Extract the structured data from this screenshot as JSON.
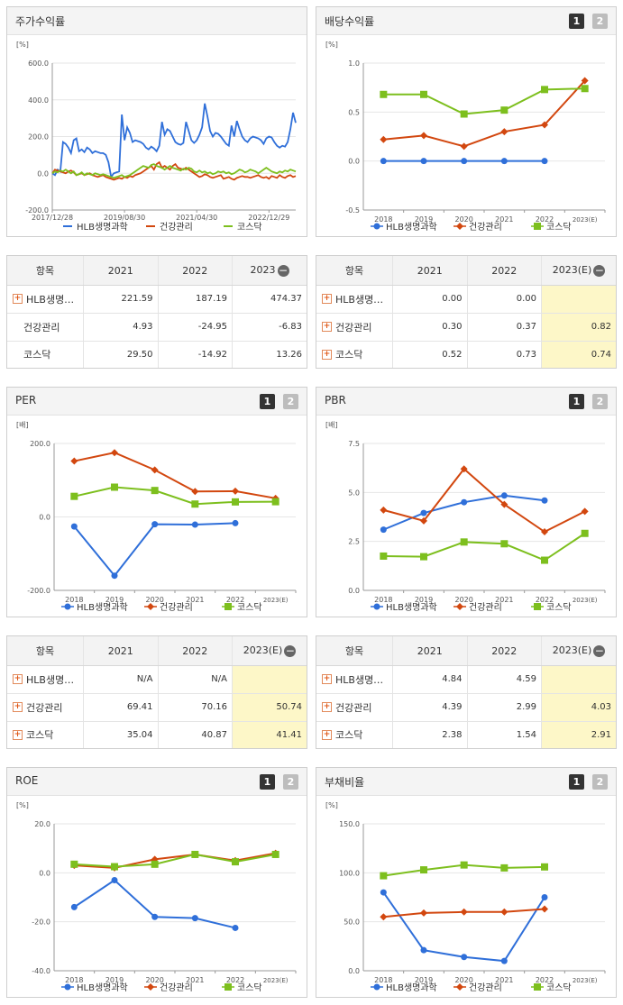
{
  "colors": {
    "hlb": "#2f6fd9",
    "health": "#d2470f",
    "kosdaq": "#7dbf1e"
  },
  "legend": [
    "HLB생명과학",
    "건강관리",
    "코스닥"
  ],
  "panels": {
    "stock": {
      "title": "주가수익률",
      "unit": "[%]"
    },
    "div": {
      "title": "배당수익률",
      "unit": "[%]"
    },
    "per": {
      "title": "PER",
      "unit": "[배]"
    },
    "pbr": {
      "title": "PBR",
      "unit": "[배]"
    },
    "roe": {
      "title": "ROE",
      "unit": "[%]"
    },
    "debt": {
      "title": "부채비율",
      "unit": "[%]"
    }
  },
  "buttons": {
    "one": "1",
    "two": "2"
  },
  "tables": {
    "stock": {
      "header": [
        "항목",
        "2021",
        "2022",
        "2023"
      ],
      "rows": [
        {
          "name": "HLB생명…",
          "vals": [
            "221.59",
            "187.19",
            "474.37"
          ]
        },
        {
          "name": "건강관리",
          "vals": [
            "4.93",
            "-24.95",
            "-6.83"
          ]
        },
        {
          "name": "코스닥",
          "vals": [
            "29.50",
            "-14.92",
            "13.26"
          ]
        }
      ]
    },
    "div": {
      "header": [
        "항목",
        "2021",
        "2022",
        "2023(E)"
      ],
      "rows": [
        {
          "name": "HLB생명…",
          "vals": [
            "0.00",
            "0.00",
            ""
          ]
        },
        {
          "name": "건강관리",
          "vals": [
            "0.30",
            "0.37",
            "0.82"
          ]
        },
        {
          "name": "코스닥",
          "vals": [
            "0.52",
            "0.73",
            "0.74"
          ]
        }
      ]
    },
    "per": {
      "header": [
        "항목",
        "2021",
        "2022",
        "2023(E)"
      ],
      "rows": [
        {
          "name": "HLB생명…",
          "vals": [
            "N/A",
            "N/A",
            ""
          ]
        },
        {
          "name": "건강관리",
          "vals": [
            "69.41",
            "70.16",
            "50.74"
          ]
        },
        {
          "name": "코스닥",
          "vals": [
            "35.04",
            "40.87",
            "41.41"
          ]
        }
      ]
    },
    "pbr": {
      "header": [
        "항목",
        "2021",
        "2022",
        "2023(E)"
      ],
      "rows": [
        {
          "name": "HLB생명…",
          "vals": [
            "4.84",
            "4.59",
            ""
          ]
        },
        {
          "name": "건강관리",
          "vals": [
            "4.39",
            "2.99",
            "4.03"
          ]
        },
        {
          "name": "코스닥",
          "vals": [
            "2.38",
            "1.54",
            "2.91"
          ]
        }
      ]
    }
  },
  "chart_data": [
    {
      "id": "stock",
      "type": "line",
      "title": "주가수익률",
      "ylabel": "[%]",
      "ylim": [
        -200,
        600
      ],
      "yticks": [
        "600.0",
        "400.0",
        "200.0",
        "0.0",
        "-200.0"
      ],
      "xticks": [
        "2017/12/28",
        "2019/08/30",
        "2021/04/30",
        "2022/12/29"
      ],
      "series": [
        {
          "name": "HLB생명과학",
          "values": [
            0,
            -10,
            20,
            10,
            170,
            160,
            140,
            110,
            180,
            190,
            120,
            130,
            115,
            140,
            130,
            110,
            120,
            115,
            110,
            110,
            100,
            60,
            -20,
            0,
            5,
            10,
            320,
            180,
            250,
            220,
            170,
            180,
            175,
            170,
            160,
            140,
            130,
            145,
            135,
            120,
            150,
            280,
            210,
            240,
            230,
            200,
            170,
            160,
            155,
            165,
            280,
            230,
            180,
            165,
            180,
            210,
            250,
            380,
            310,
            230,
            200,
            220,
            215,
            200,
            180,
            160,
            150,
            260,
            200,
            285,
            240,
            200,
            180,
            170,
            190,
            200,
            195,
            190,
            180,
            160,
            190,
            200,
            195,
            170,
            150,
            140,
            150,
            145,
            170,
            240,
            330,
            275
          ]
        },
        {
          "name": "건강관리",
          "values": [
            0,
            20,
            15,
            10,
            5,
            0,
            10,
            15,
            5,
            -10,
            -5,
            0,
            -10,
            -5,
            0,
            -10,
            -15,
            -20,
            -15,
            -10,
            -20,
            -25,
            -30,
            -35,
            -30,
            -25,
            -30,
            -20,
            -25,
            -15,
            -20,
            -10,
            -5,
            0,
            10,
            20,
            30,
            40,
            20,
            50,
            60,
            30,
            40,
            30,
            20,
            40,
            50,
            30,
            25,
            20,
            30,
            20,
            10,
            0,
            -10,
            -20,
            -15,
            -5,
            -10,
            -20,
            -25,
            -20,
            -15,
            -10,
            -30,
            -25,
            -20,
            -30,
            -35,
            -25,
            -20,
            -15,
            -20,
            -20,
            -25,
            -20,
            -15,
            -10,
            -20,
            -25,
            -20,
            -30,
            -15,
            -20,
            -25,
            -10,
            -20,
            -25,
            -15,
            -10,
            -20,
            -15
          ]
        },
        {
          "name": "코스닥",
          "values": [
            0,
            10,
            5,
            15,
            10,
            20,
            10,
            0,
            10,
            -10,
            -5,
            5,
            -10,
            0,
            -5,
            -10,
            0,
            -5,
            -10,
            -5,
            -10,
            -15,
            -20,
            -25,
            -20,
            -15,
            -10,
            -20,
            -15,
            -10,
            0,
            10,
            20,
            30,
            40,
            35,
            30,
            45,
            50,
            40,
            35,
            30,
            20,
            30,
            40,
            30,
            25,
            20,
            15,
            25,
            20,
            30,
            25,
            10,
            5,
            15,
            5,
            10,
            0,
            5,
            -5,
            0,
            10,
            5,
            10,
            0,
            5,
            -5,
            0,
            10,
            20,
            15,
            5,
            10,
            20,
            15,
            10,
            0,
            10,
            20,
            30,
            20,
            10,
            5,
            0,
            10,
            5,
            15,
            10,
            20,
            15,
            10
          ]
        }
      ]
    },
    {
      "id": "div",
      "type": "line",
      "title": "배당수익률",
      "ylabel": "[%]",
      "ylim": [
        -0.5,
        1.0
      ],
      "yticks": [
        "1.0",
        "0.5",
        "0.0",
        "-0.5"
      ],
      "categories": [
        "2018",
        "2019",
        "2020",
        "2021",
        "2022",
        "2023(E)"
      ],
      "series": [
        {
          "name": "HLB생명과학",
          "values": [
            0.0,
            0.0,
            0.0,
            0.0,
            0.0,
            null
          ]
        },
        {
          "name": "건강관리",
          "values": [
            0.22,
            0.26,
            0.15,
            0.3,
            0.37,
            0.82
          ]
        },
        {
          "name": "코스닥",
          "values": [
            0.68,
            0.68,
            0.48,
            0.52,
            0.73,
            0.74
          ]
        }
      ]
    },
    {
      "id": "per",
      "type": "line",
      "title": "PER",
      "ylabel": "[배]",
      "ylim": [
        -200,
        200
      ],
      "yticks": [
        "200.0",
        "0.0",
        "-200.0"
      ],
      "categories": [
        "2018",
        "2019",
        "2020",
        "2021",
        "2022",
        "2023(E)"
      ],
      "series": [
        {
          "name": "HLB생명과학",
          "values": [
            -26,
            -160,
            -20,
            -21,
            -17,
            null
          ]
        },
        {
          "name": "건강관리",
          "values": [
            152,
            175,
            128,
            69.41,
            70.16,
            50.74
          ]
        },
        {
          "name": "코스닥",
          "values": [
            56,
            81,
            72,
            35.04,
            40.87,
            41.41
          ]
        }
      ]
    },
    {
      "id": "pbr",
      "type": "line",
      "title": "PBR",
      "ylabel": "[배]",
      "ylim": [
        0,
        7.5
      ],
      "yticks": [
        "7.5",
        "5.0",
        "2.5",
        "0.0"
      ],
      "categories": [
        "2018",
        "2019",
        "2020",
        "2021",
        "2022",
        "2023(E)"
      ],
      "series": [
        {
          "name": "HLB생명과학",
          "values": [
            3.1,
            3.95,
            4.5,
            4.84,
            4.59,
            null
          ]
        },
        {
          "name": "건강관리",
          "values": [
            4.1,
            3.55,
            6.2,
            4.39,
            2.99,
            4.03
          ]
        },
        {
          "name": "코스닥",
          "values": [
            1.75,
            1.72,
            2.47,
            2.38,
            1.54,
            2.91
          ]
        }
      ]
    },
    {
      "id": "roe",
      "type": "line",
      "title": "ROE",
      "ylabel": "[%]",
      "ylim": [
        -40,
        20
      ],
      "yticks": [
        "20.0",
        "0.0",
        "-20.0",
        "-40.0"
      ],
      "categories": [
        "2018",
        "2019",
        "2020",
        "2021",
        "2022",
        "2023(E)"
      ],
      "series": [
        {
          "name": "HLB생명과학",
          "values": [
            -14,
            -3,
            -18,
            -18.5,
            -22.5,
            null
          ]
        },
        {
          "name": "건강관리",
          "values": [
            3,
            2,
            5.5,
            7.5,
            5,
            8
          ]
        },
        {
          "name": "코스닥",
          "values": [
            3.5,
            2.5,
            3.5,
            7.5,
            4.5,
            7.5
          ]
        }
      ]
    },
    {
      "id": "debt",
      "type": "line",
      "title": "부채비율",
      "ylabel": "[%]",
      "ylim": [
        0,
        150
      ],
      "yticks": [
        "150.0",
        "100.0",
        "50.0",
        "0.0"
      ],
      "categories": [
        "2018",
        "2019",
        "2020",
        "2021",
        "2022",
        "2023(E)"
      ],
      "series": [
        {
          "name": "HLB생명과학",
          "values": [
            80,
            21,
            14,
            10,
            75,
            null
          ]
        },
        {
          "name": "건강관리",
          "values": [
            55,
            59,
            60,
            60,
            63,
            null
          ]
        },
        {
          "name": "코스닥",
          "values": [
            97,
            103,
            108,
            105,
            106,
            null
          ]
        }
      ]
    }
  ]
}
